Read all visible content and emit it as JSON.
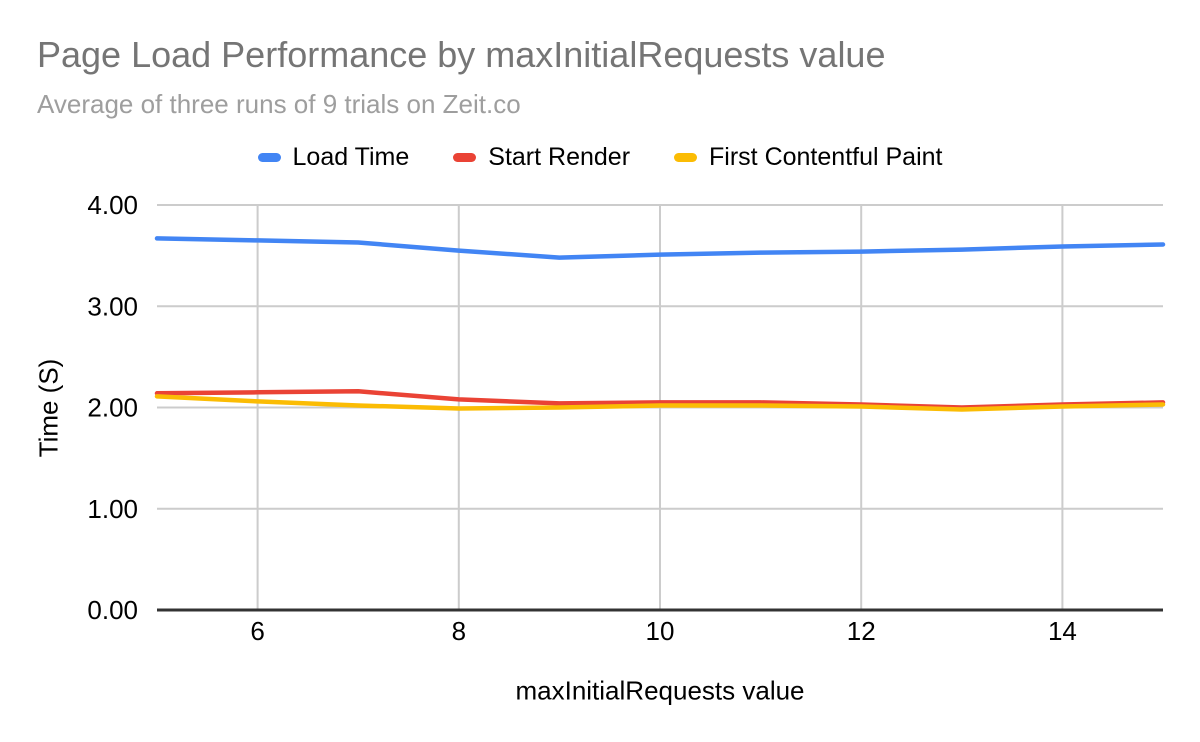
{
  "chart_data": {
    "type": "line",
    "title": "Page Load Performance by maxInitialRequests value",
    "subtitle": "Average of three runs of 9 trials on Zeit.co",
    "xlabel": "maxInitialRequests value",
    "ylabel": "Time (S)",
    "x": [
      5,
      6,
      7,
      8,
      9,
      10,
      11,
      12,
      13,
      14,
      15
    ],
    "series": [
      {
        "name": "Load Time",
        "color": "#4285F4",
        "values": [
          3.67,
          3.65,
          3.63,
          3.55,
          3.48,
          3.51,
          3.53,
          3.54,
          3.56,
          3.59,
          3.61
        ]
      },
      {
        "name": "Start Render",
        "color": "#EA4335",
        "values": [
          2.14,
          2.15,
          2.16,
          2.08,
          2.04,
          2.05,
          2.05,
          2.03,
          2.0,
          2.03,
          2.05
        ]
      },
      {
        "name": "First Contentful Paint",
        "color": "#FBBC04",
        "values": [
          2.11,
          2.06,
          2.02,
          1.99,
          2.0,
          2.02,
          2.02,
          2.01,
          1.98,
          2.01,
          2.03
        ]
      }
    ],
    "xlim": [
      5,
      15
    ],
    "ylim": [
      0,
      4
    ],
    "xticks": [
      6,
      8,
      10,
      12,
      14
    ],
    "xtick_labels": [
      "6",
      "8",
      "10",
      "12",
      "14"
    ],
    "yticks": [
      0,
      1,
      2,
      3,
      4
    ],
    "ytick_labels": [
      "0.00",
      "1.00",
      "2.00",
      "3.00",
      "4.00"
    ],
    "grid": true,
    "legend_position": "top"
  },
  "styles": {
    "title_color": "#757575",
    "subtitle_color": "#9E9E9E",
    "grid_color": "#CCCCCC",
    "axis_line_color": "#333333",
    "tick_label_color": "#000000"
  }
}
